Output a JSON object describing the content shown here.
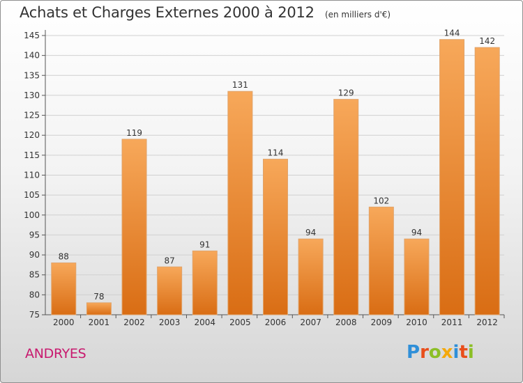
{
  "chart_data": {
    "type": "bar",
    "title": "Achats et Charges Externes 2000 à 2012",
    "subtitle": "(en milliers d'€)",
    "categories": [
      "2000",
      "2001",
      "2002",
      "2003",
      "2004",
      "2005",
      "2006",
      "2007",
      "2008",
      "2009",
      "2010",
      "2011",
      "2012"
    ],
    "values": [
      88,
      78,
      119,
      87,
      91,
      131,
      114,
      94,
      129,
      102,
      94,
      144,
      142
    ],
    "ylim": [
      75,
      145
    ],
    "yticks": [
      75,
      80,
      85,
      90,
      95,
      100,
      105,
      110,
      115,
      120,
      125,
      130,
      135,
      140,
      145
    ],
    "xlabel": "",
    "ylabel": "",
    "grid": true,
    "bar_color_top": "#f7a85a",
    "bar_color_bottom": "#d96d14"
  },
  "footer": {
    "commune": "ANDRYES",
    "logo_text": "Proxiti",
    "logo_colors": [
      "#2f8fd8",
      "#e94e1b",
      "#8cbf26",
      "#f4a90c",
      "#2f8fd8",
      "#e94e1b",
      "#8cbf26"
    ]
  }
}
